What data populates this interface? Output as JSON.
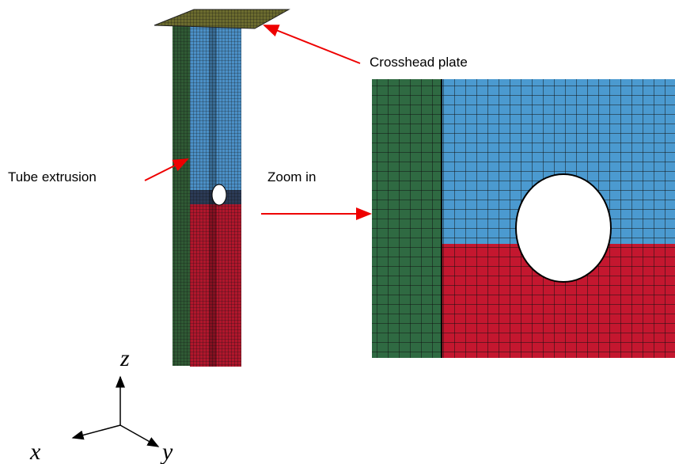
{
  "labels": {
    "plate": "Crosshead plate",
    "tube": "Tube extrusion",
    "zoom": "Zoom in"
  },
  "axes": {
    "z": "z",
    "x": "x",
    "y": "y"
  }
}
